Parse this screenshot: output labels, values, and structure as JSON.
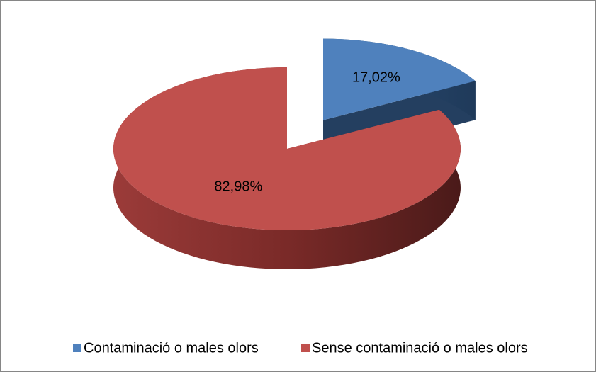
{
  "chart_data": {
    "type": "pie",
    "categories": [
      "Contaminació o males olors",
      "Sense contaminació o males olors"
    ],
    "values": [
      17.02,
      82.98
    ],
    "value_labels": [
      "17,02%",
      "82,98%"
    ],
    "colors": [
      "#4f81bd",
      "#c0504d"
    ]
  }
}
